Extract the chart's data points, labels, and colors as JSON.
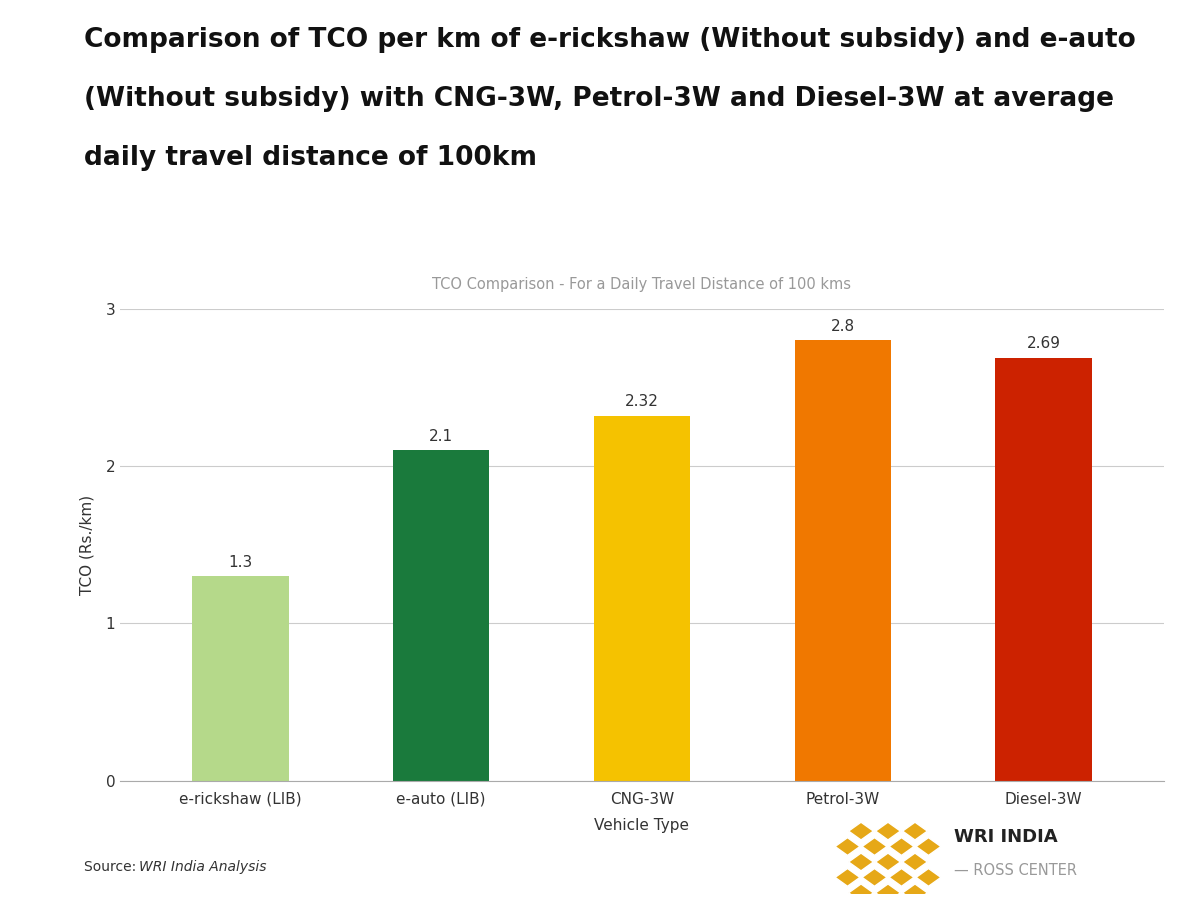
{
  "title_line1": "Comparison of TCO per km of e-rickshaw (Without subsidy) and e-auto",
  "title_line2": "(Without subsidy) with CNG-3W, Petrol-3W and Diesel-3W at average",
  "title_line3": "daily travel distance of 100km",
  "subtitle": "TCO Comparison - For a Daily Travel Distance of 100 kms",
  "categories": [
    "e-rickshaw (LIB)",
    "e-auto (LIB)",
    "CNG-3W",
    "Petrol-3W",
    "Diesel-3W"
  ],
  "values": [
    1.3,
    2.1,
    2.32,
    2.8,
    2.69
  ],
  "bar_colors": [
    "#b5d98a",
    "#1a7a3c",
    "#f5c200",
    "#f07800",
    "#cc2200"
  ],
  "xlabel": "Vehicle Type",
  "ylabel": "TCO (Rs./km)",
  "ylim": [
    0,
    3
  ],
  "yticks": [
    0,
    1,
    2,
    3
  ],
  "source_label": "Source: ",
  "source_italic": "WRI India Analysis",
  "title_fontsize": 19,
  "subtitle_fontsize": 10.5,
  "axis_label_fontsize": 11,
  "tick_fontsize": 11,
  "value_label_fontsize": 11,
  "background_color": "#ffffff",
  "grid_color": "#cccccc",
  "wri_text_color": "#222222",
  "ross_text_color": "#999999",
  "logo_gold": "#e6a817"
}
